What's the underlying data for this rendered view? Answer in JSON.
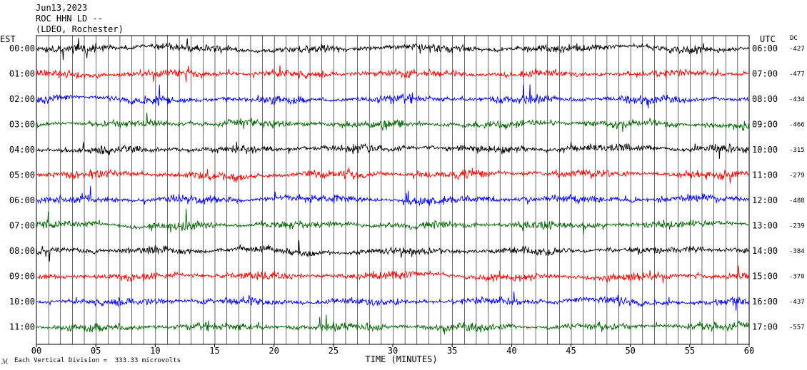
{
  "header": {
    "date": "Jun13,2023",
    "station": "ROC HHN LD --",
    "network": "(LDEO, Rochester)"
  },
  "left_zone_label": "EST",
  "right_zone_label": "UTC",
  "dc_header": "DC",
  "footer": {
    "scale_note": "Each Vertical Division =  333.33 microvolts"
  },
  "chart_data": {
    "type": "line",
    "subtype": "helicorder-seismogram",
    "xlabel": "TIME (MINUTES)",
    "xlim": [
      0,
      60
    ],
    "x_ticks": [
      {
        "value": 0,
        "label": "00"
      },
      {
        "value": 5,
        "label": "05"
      },
      {
        "value": 10,
        "label": "10"
      },
      {
        "value": 15,
        "label": "15"
      },
      {
        "value": 20,
        "label": "20"
      },
      {
        "value": 25,
        "label": "25"
      },
      {
        "value": 30,
        "label": "30"
      },
      {
        "value": 35,
        "label": "35"
      },
      {
        "value": 40,
        "label": "40"
      },
      {
        "value": 45,
        "label": "45"
      },
      {
        "value": 50,
        "label": "50"
      },
      {
        "value": 55,
        "label": "55"
      },
      {
        "value": 60,
        "label": "60"
      }
    ],
    "vertical_grid_every_minutes": 1,
    "rows": [
      {
        "est": "00:00",
        "utc": "06:00",
        "dc": "-427",
        "color": "#000000"
      },
      {
        "est": "01:00",
        "utc": "07:00",
        "dc": "-477",
        "color": "#ff0000"
      },
      {
        "est": "02:00",
        "utc": "08:00",
        "dc": "-434",
        "color": "#0000ff"
      },
      {
        "est": "03:00",
        "utc": "09:00",
        "dc": "-466",
        "color": "#006600"
      },
      {
        "est": "04:00",
        "utc": "10:00",
        "dc": "-315",
        "color": "#000000"
      },
      {
        "est": "05:00",
        "utc": "11:00",
        "dc": "-279",
        "color": "#ff0000"
      },
      {
        "est": "06:00",
        "utc": "12:00",
        "dc": "-488",
        "color": "#0000ff"
      },
      {
        "est": "07:00",
        "utc": "13:00",
        "dc": "-239",
        "color": "#006600"
      },
      {
        "est": "08:00",
        "utc": "14:00",
        "dc": "-384",
        "color": "#000000"
      },
      {
        "est": "09:00",
        "utc": "15:00",
        "dc": "-370",
        "color": "#ff0000"
      },
      {
        "est": "10:00",
        "utc": "16:00",
        "dc": "-437",
        "color": "#0000ff"
      },
      {
        "est": "11:00",
        "utc": "17:00",
        "dc": "-557",
        "color": "#006600"
      }
    ]
  }
}
